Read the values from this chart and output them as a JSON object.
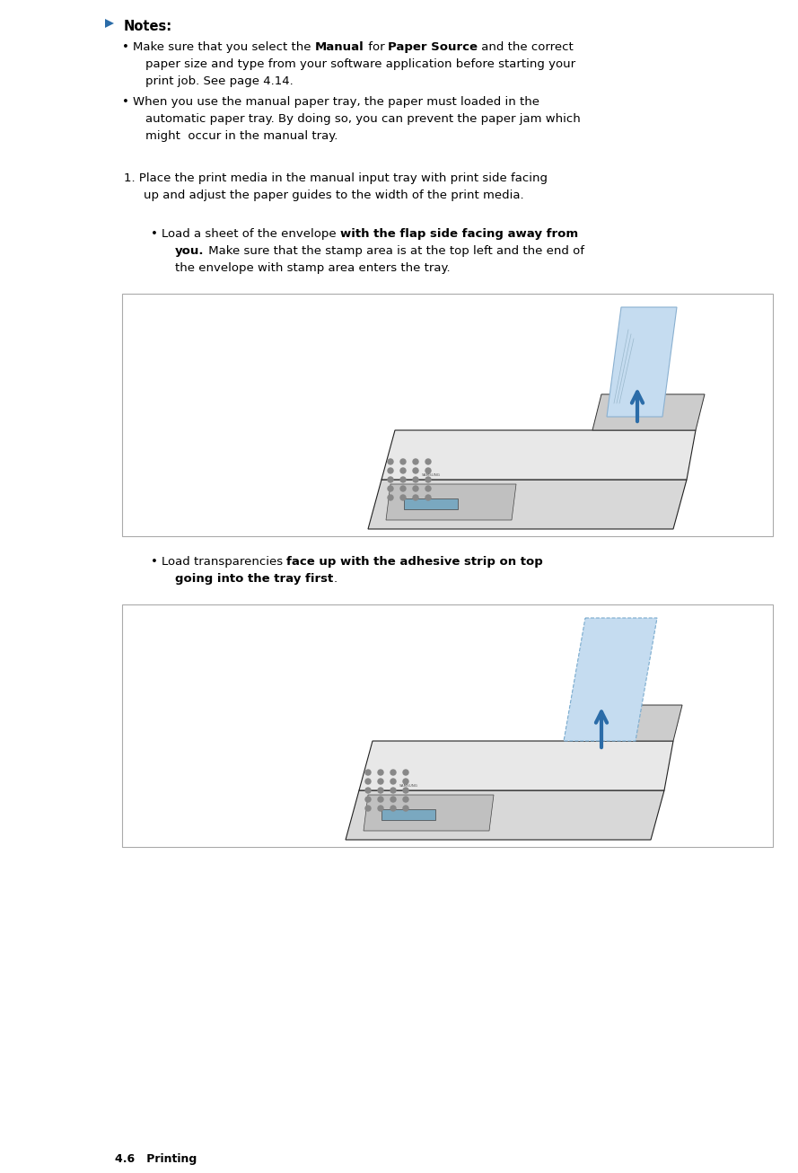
{
  "bg_color": "#ffffff",
  "text_color": "#000000",
  "blue_color": "#2b6ca8",
  "notes_label": "Notes:",
  "b1_pre": "Make sure that you select the ",
  "b1_bold1": "Manual",
  "b1_mid": " for ",
  "b1_bold2": "Paper Source",
  "b1_end": " and the correct",
  "b1_l2": "paper size and type from your software application before starting your",
  "b1_l3": "print job. See page 4.14.",
  "b2_l1": "When you use the manual paper tray, the paper must loaded in the",
  "b2_l2": "automatic paper tray. By doing so, you can prevent the paper jam which",
  "b2_l3": "might  occur in the manual tray.",
  "step1_l1": "1. Place the print media in the manual input tray with print side facing",
  "step1_l2": "up and adjust the paper guides to the width of the print media.",
  "sb1_pre": "Load a sheet of the envelope ",
  "sb1_bold1": "with the flap side facing away from",
  "sb1_bold2": "you.",
  "sb1_rest": " Make sure that the stamp area is at the top left and the end of",
  "sb1_l3": "the envelope with stamp area enters the tray.",
  "sb2_pre": "Load transparencies ",
  "sb2_bold1": "face up with the adhesive strip on top",
  "sb2_bold2": "going into the tray first",
  "sb2_end": ".",
  "footer": "4.6   Printing",
  "font_size": 9.5,
  "notes_font_size": 10.5,
  "footer_font_size": 9.0,
  "page_width": 8.89,
  "page_height": 13.06,
  "dpi": 100
}
